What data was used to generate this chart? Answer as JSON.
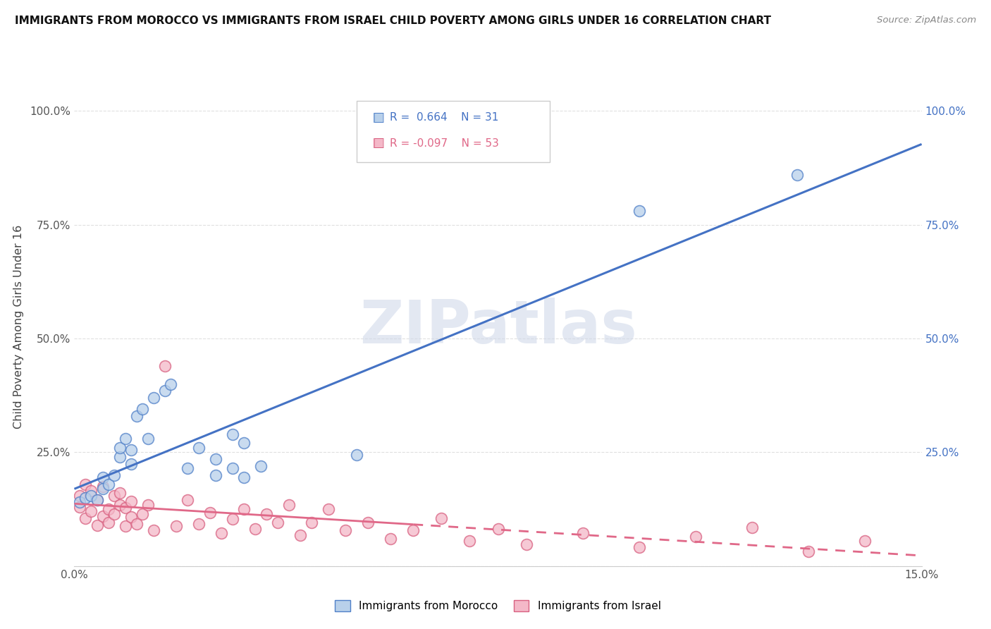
{
  "title": "IMMIGRANTS FROM MOROCCO VS IMMIGRANTS FROM ISRAEL CHILD POVERTY AMONG GIRLS UNDER 16 CORRELATION CHART",
  "source": "Source: ZipAtlas.com",
  "ylabel": "Child Poverty Among Girls Under 16",
  "xlim": [
    0.0,
    0.15
  ],
  "ylim": [
    0.0,
    1.05
  ],
  "xticks": [
    0.0,
    0.05,
    0.1,
    0.15
  ],
  "xticklabels": [
    "0.0%",
    "",
    "",
    "15.0%"
  ],
  "yticks": [
    0.0,
    0.25,
    0.5,
    0.75,
    1.0
  ],
  "yticklabels_left": [
    "",
    "25.0%",
    "50.0%",
    "75.0%",
    "100.0%"
  ],
  "yticklabels_right": [
    "",
    "25.0%",
    "50.0%",
    "75.0%",
    "100.0%"
  ],
  "morocco_R": 0.664,
  "morocco_N": 31,
  "israel_R": -0.097,
  "israel_N": 53,
  "morocco_fill": "#b8d0ea",
  "morocco_edge": "#5080c8",
  "israel_fill": "#f4b8c8",
  "israel_edge": "#d86080",
  "morocco_line": "#4472c4",
  "israel_line": "#e06888",
  "watermark": "ZIPatlas",
  "watermark_color": "#ccd6e8",
  "bg": "#ffffff",
  "grid_color": "#e0e0e0",
  "morocco_x": [
    0.001,
    0.002,
    0.003,
    0.004,
    0.005,
    0.005,
    0.006,
    0.007,
    0.008,
    0.008,
    0.009,
    0.01,
    0.01,
    0.011,
    0.012,
    0.013,
    0.014,
    0.016,
    0.017,
    0.02,
    0.022,
    0.025,
    0.028,
    0.03,
    0.033,
    0.025,
    0.028,
    0.03,
    0.05,
    0.1,
    0.128
  ],
  "morocco_y": [
    0.14,
    0.15,
    0.155,
    0.145,
    0.17,
    0.195,
    0.18,
    0.2,
    0.24,
    0.26,
    0.28,
    0.225,
    0.255,
    0.33,
    0.345,
    0.28,
    0.37,
    0.385,
    0.4,
    0.215,
    0.26,
    0.2,
    0.29,
    0.195,
    0.22,
    0.235,
    0.215,
    0.27,
    0.245,
    0.78,
    0.86
  ],
  "israel_x": [
    0.001,
    0.001,
    0.002,
    0.002,
    0.003,
    0.003,
    0.004,
    0.004,
    0.005,
    0.005,
    0.006,
    0.006,
    0.007,
    0.007,
    0.008,
    0.008,
    0.009,
    0.009,
    0.01,
    0.01,
    0.011,
    0.012,
    0.013,
    0.014,
    0.016,
    0.018,
    0.02,
    0.022,
    0.024,
    0.026,
    0.028,
    0.03,
    0.032,
    0.034,
    0.036,
    0.038,
    0.04,
    0.042,
    0.045,
    0.048,
    0.052,
    0.056,
    0.06,
    0.065,
    0.07,
    0.075,
    0.08,
    0.09,
    0.1,
    0.11,
    0.12,
    0.13,
    0.14
  ],
  "israel_y": [
    0.13,
    0.155,
    0.105,
    0.18,
    0.12,
    0.165,
    0.09,
    0.145,
    0.11,
    0.175,
    0.125,
    0.095,
    0.155,
    0.115,
    0.135,
    0.16,
    0.088,
    0.128,
    0.142,
    0.108,
    0.092,
    0.115,
    0.135,
    0.078,
    0.44,
    0.088,
    0.145,
    0.092,
    0.118,
    0.072,
    0.104,
    0.125,
    0.082,
    0.114,
    0.095,
    0.135,
    0.068,
    0.095,
    0.125,
    0.078,
    0.095,
    0.06,
    0.078,
    0.105,
    0.055,
    0.082,
    0.048,
    0.072,
    0.042,
    0.065,
    0.085,
    0.032,
    0.055
  ]
}
